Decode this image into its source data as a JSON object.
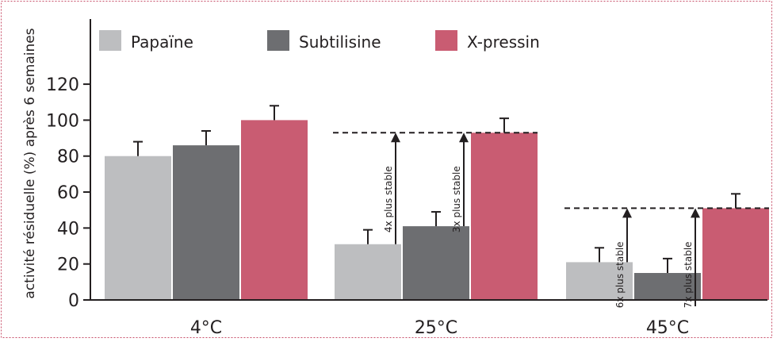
{
  "chart_data": {
    "type": "bar",
    "ylabel": "activité résiduelle (%) après 6 semaines",
    "xlabel": "",
    "ylim": [
      0,
      120
    ],
    "yticks": [
      0,
      20,
      40,
      60,
      80,
      100,
      120
    ],
    "grid": false,
    "legend_position": "top",
    "categories": [
      "4°C",
      "25°C",
      "45°C"
    ],
    "series": [
      {
        "name": "Papaïne",
        "color": "#bdbec0",
        "values": [
          80,
          31,
          21
        ],
        "errors": [
          8,
          8,
          8
        ]
      },
      {
        "name": "Subtilisine",
        "color": "#6d6e71",
        "values": [
          86,
          41,
          15
        ],
        "errors": [
          8,
          8,
          8
        ]
      },
      {
        "name": "X-pressin",
        "color": "#c95c72",
        "values": [
          100,
          93,
          51
        ],
        "errors": [
          8,
          8,
          8
        ]
      }
    ],
    "annotations": [
      {
        "category": 1,
        "series": 0,
        "target": 93,
        "label": "4x plus stable"
      },
      {
        "category": 1,
        "series": 1,
        "target": 93,
        "label": "3x plus stable"
      },
      {
        "category": 2,
        "series": 0,
        "target": 51,
        "label": "6x plus stable"
      },
      {
        "category": 2,
        "series": 1,
        "target": 51,
        "label": "7x plus stable"
      }
    ]
  }
}
